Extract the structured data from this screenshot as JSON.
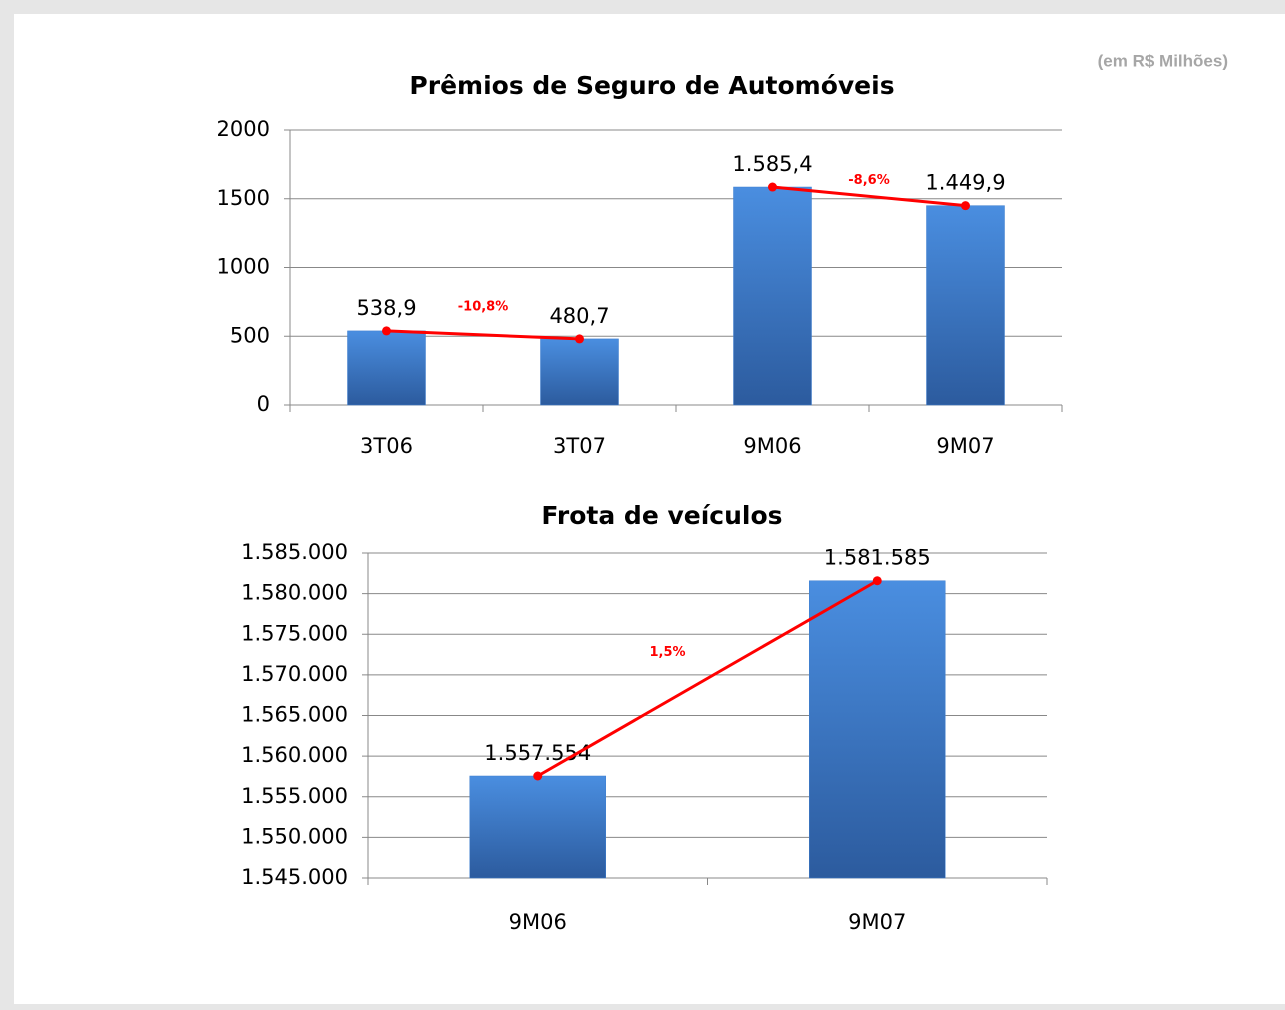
{
  "unit_note": "(em R$ Milhões)",
  "chart_data": [
    {
      "type": "bar",
      "title": "Prêmios de Seguro de Automóveis",
      "categories": [
        "3T06",
        "3T07",
        "9M06",
        "9M07"
      ],
      "values": [
        538.9,
        480.7,
        1585.4,
        1449.9
      ],
      "value_labels": [
        "538,9",
        "480,7",
        "1.585,4",
        "1.449,9"
      ],
      "color": "#3f7fcf",
      "line_color": "#ff0000",
      "annotations": [
        {
          "text": "-10,8%"
        },
        {
          "text": "-8,6%"
        }
      ],
      "ylim": [
        0,
        2000
      ],
      "yticks": [
        0,
        500,
        1000,
        1500,
        2000
      ],
      "grid": true
    },
    {
      "type": "bar",
      "title": "Frota de veículos",
      "categories": [
        "9M06",
        "9M07"
      ],
      "values": [
        1557554,
        1581585
      ],
      "value_labels": [
        "1.557.554",
        "1.581.585"
      ],
      "color": "#3f7fcf",
      "line_color": "#ff0000",
      "annotations": [
        {
          "text": "1,5%"
        }
      ],
      "ylim": [
        1545000,
        1585000
      ],
      "yticks": [
        {
          "value": 1545000,
          "label": "1.545.000"
        },
        {
          "value": 1550000,
          "label": "1.550.000"
        },
        {
          "value": 1555000,
          "label": "1.555.000"
        },
        {
          "value": 1560000,
          "label": "1.560.000"
        },
        {
          "value": 1565000,
          "label": "1.565.000"
        },
        {
          "value": 1570000,
          "label": "1.570.000"
        },
        {
          "value": 1575000,
          "label": "1.575.000"
        },
        {
          "value": 1580000,
          "label": "1.580.000"
        },
        {
          "value": 1585000,
          "label": "1.585.000"
        }
      ],
      "grid": true
    }
  ]
}
